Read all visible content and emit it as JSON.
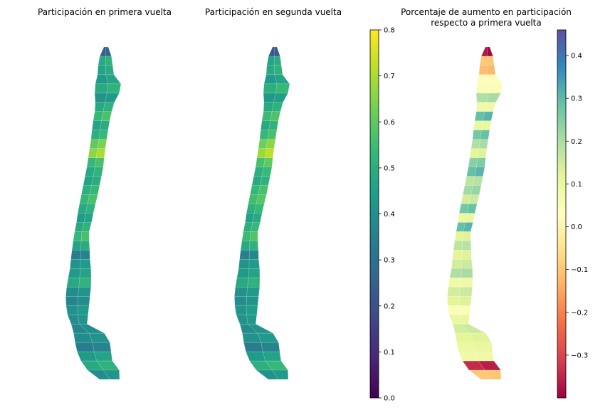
{
  "chart_data": [
    {
      "type": "heatmap",
      "subtype": "choropleth-map",
      "title": "Participación en primera vuelta",
      "region": "Chile",
      "colormap": "viridis",
      "value_range": [
        0.0,
        0.8
      ],
      "values_north_to_south": [
        0.25,
        0.5,
        0.48,
        0.45,
        0.5,
        0.42,
        0.5,
        0.55,
        0.48,
        0.52,
        0.62,
        0.68,
        0.55,
        0.5,
        0.48,
        0.52,
        0.55,
        0.5,
        0.45,
        0.5,
        0.55,
        0.48,
        0.35,
        0.42,
        0.45,
        0.5,
        0.4,
        0.38,
        0.42,
        0.4,
        0.38,
        0.4,
        0.35,
        0.45,
        0.5,
        0.4
      ]
    },
    {
      "type": "heatmap",
      "subtype": "choropleth-map",
      "title": "Participación en segunda vuelta",
      "region": "Chile",
      "colormap": "viridis",
      "value_range": [
        0.0,
        0.8
      ],
      "colorbar": {
        "ticks": [
          "0.0",
          "0.1",
          "0.2",
          "0.3",
          "0.4",
          "0.5",
          "0.6",
          "0.7",
          "0.8"
        ]
      },
      "values_north_to_south": [
        0.22,
        0.48,
        0.5,
        0.45,
        0.52,
        0.44,
        0.5,
        0.56,
        0.5,
        0.55,
        0.64,
        0.7,
        0.58,
        0.52,
        0.5,
        0.55,
        0.57,
        0.52,
        0.47,
        0.52,
        0.56,
        0.5,
        0.36,
        0.42,
        0.45,
        0.5,
        0.42,
        0.4,
        0.43,
        0.42,
        0.4,
        0.42,
        0.35,
        0.45,
        0.52,
        0.42
      ]
    },
    {
      "type": "heatmap",
      "subtype": "choropleth-map",
      "title": "Porcentaje de aumento en participación\nrespecto a primera vuelta",
      "title_lines": [
        "Porcentaje de aumento en participación",
        "respecto a primera vuelta"
      ],
      "region": "Chile",
      "colormap": "Spectral",
      "value_range": [
        -0.4,
        0.46
      ],
      "colorbar": {
        "ticks": [
          "−0.3",
          "−0.2",
          "−0.1",
          "0.0",
          "0.1",
          "0.2",
          "0.3",
          "0.4"
        ],
        "tick_values": [
          -0.3,
          -0.2,
          -0.1,
          0.0,
          0.1,
          0.2,
          0.3,
          0.4
        ]
      },
      "values_north_to_south": [
        -0.38,
        -0.1,
        -0.12,
        0.02,
        0.05,
        0.2,
        0.08,
        0.3,
        0.1,
        0.28,
        0.2,
        0.12,
        0.25,
        0.3,
        0.18,
        0.22,
        0.15,
        0.28,
        0.1,
        0.3,
        0.12,
        0.18,
        0.12,
        0.15,
        0.2,
        0.08,
        0.15,
        0.12,
        0.05,
        0.1,
        0.15,
        0.12,
        0.1,
        0.08,
        -0.35,
        -0.1
      ]
    }
  ]
}
